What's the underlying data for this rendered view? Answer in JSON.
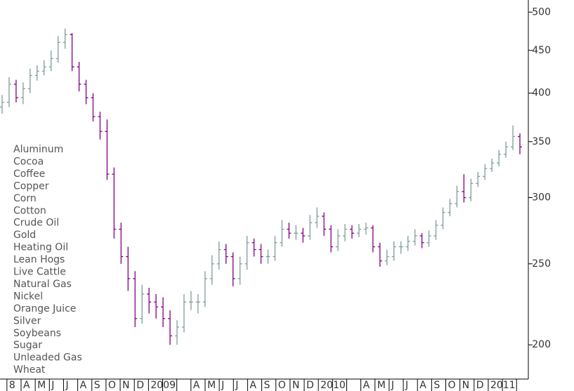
{
  "chart_data": {
    "type": "ohlc",
    "up_color": "#7f9c9c",
    "down_color": "#800080",
    "log_scale": true,
    "ylim": [
      182,
      517
    ],
    "yticks": [
      200,
      250,
      300,
      350,
      400,
      450,
      500
    ],
    "categories": [
      "8",
      "A",
      "M",
      "J",
      "J",
      "A",
      "S",
      "O",
      "N",
      "D",
      "2009",
      null,
      null,
      "A",
      "M",
      "J",
      "J",
      "A",
      "S",
      "O",
      "N",
      "D",
      "2010",
      null,
      null,
      "A",
      "M",
      "J",
      "J",
      "A",
      "S",
      "O",
      "N",
      "D",
      "2011",
      null,
      null
    ],
    "open": [
      385,
      390,
      410,
      395,
      405,
      420,
      425,
      430,
      440,
      460,
      470,
      430,
      410,
      395,
      375,
      360,
      320,
      275,
      255,
      240,
      215,
      230,
      225,
      222,
      215,
      205,
      210,
      225,
      225,
      225,
      240,
      250,
      260,
      255,
      240,
      250,
      265,
      260,
      255,
      255,
      265,
      275,
      272,
      272,
      270,
      280,
      285,
      275,
      262,
      270,
      275,
      272,
      275,
      276,
      262,
      252,
      255,
      262,
      262,
      266,
      270,
      265,
      270,
      278,
      288,
      295,
      305,
      300,
      312,
      318,
      325,
      330,
      338,
      345,
      355
    ],
    "high": [
      398,
      418,
      415,
      412,
      428,
      432,
      438,
      450,
      468,
      478,
      472,
      436,
      415,
      400,
      380,
      372,
      326,
      280,
      262,
      245,
      236,
      234,
      230,
      228,
      220,
      214,
      230,
      232,
      230,
      245,
      256,
      266,
      264,
      258,
      255,
      270,
      268,
      264,
      260,
      270,
      282,
      280,
      278,
      276,
      286,
      292,
      288,
      278,
      275,
      279,
      278,
      279,
      280,
      278,
      265,
      260,
      266,
      266,
      270,
      275,
      272,
      274,
      282,
      292,
      299,
      310,
      320,
      316,
      322,
      329,
      334,
      342,
      350,
      366,
      358
    ],
    "low": [
      378,
      385,
      390,
      388,
      400,
      414,
      420,
      425,
      435,
      452,
      425,
      402,
      388,
      370,
      352,
      315,
      268,
      250,
      232,
      210,
      212,
      218,
      215,
      210,
      200,
      200,
      207,
      220,
      218,
      222,
      236,
      246,
      250,
      235,
      236,
      246,
      255,
      250,
      250,
      252,
      262,
      268,
      267,
      265,
      267,
      276,
      270,
      258,
      259,
      266,
      268,
      269,
      271,
      258,
      248,
      249,
      252,
      257,
      259,
      263,
      261,
      262,
      267,
      275,
      285,
      292,
      296,
      297,
      309,
      315,
      322,
      327,
      335,
      342,
      338
    ],
    "close": [
      390,
      410,
      395,
      405,
      420,
      425,
      430,
      440,
      460,
      470,
      430,
      410,
      395,
      375,
      360,
      320,
      275,
      255,
      240,
      215,
      230,
      225,
      222,
      215,
      205,
      210,
      225,
      225,
      225,
      240,
      250,
      260,
      255,
      240,
      250,
      265,
      260,
      255,
      255,
      265,
      275,
      272,
      272,
      270,
      280,
      285,
      275,
      262,
      270,
      275,
      272,
      275,
      276,
      262,
      252,
      255,
      262,
      262,
      266,
      270,
      265,
      270,
      278,
      288,
      295,
      305,
      300,
      312,
      318,
      325,
      330,
      338,
      345,
      355,
      345
    ]
  },
  "commodities": [
    "Aluminum",
    "Cocoa",
    "Coffee",
    "Copper",
    "Corn",
    "Cotton",
    "Crude Oil",
    "Gold",
    "Heating Oil",
    "Lean Hogs",
    "Live Cattle",
    "Natural Gas",
    "Nickel",
    "Orange Juice",
    "Silver",
    "Soybeans",
    "Sugar",
    "Unleaded Gas",
    "Wheat"
  ]
}
